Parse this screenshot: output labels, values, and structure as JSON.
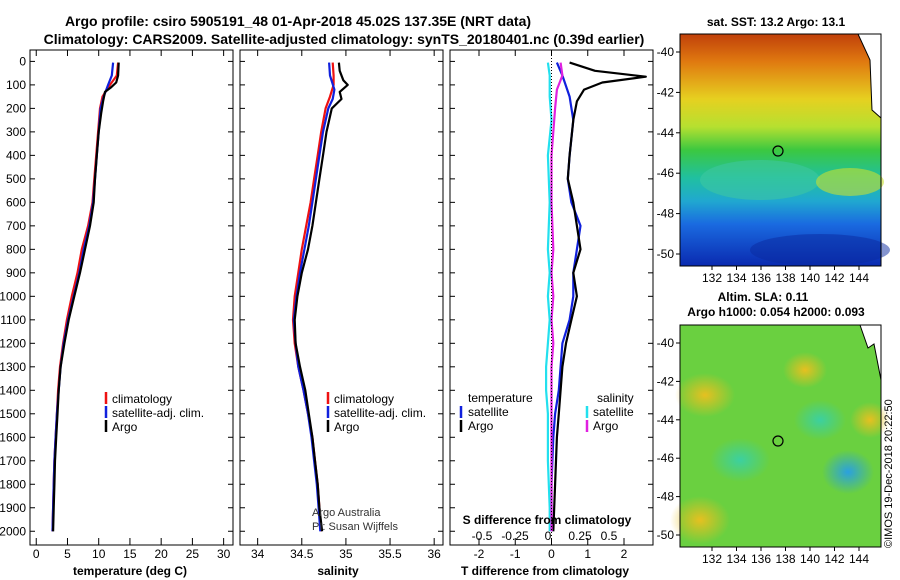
{
  "title_line1": "Argo profile: csiro 5905191_48 01-Apr-2018 45.02S 137.35E (NRT data)",
  "title_line2": "Climatology: CARS2009. Satellite-adjusted climatology: synTS_20180401.nc (0.39d earlier)",
  "colors": {
    "climatology": "#ee1111",
    "satellite": "#1020dd",
    "argo": "#000000",
    "sal_satellite": "#22e0ee",
    "sal_argo": "#e020e0"
  },
  "depth_ticks": [
    "0",
    "100",
    "200",
    "300",
    "400",
    "500",
    "600",
    "700",
    "800",
    "900",
    "1000",
    "1100",
    "1200",
    "1300",
    "1400",
    "1500",
    "1600",
    "1700",
    "1800",
    "1900",
    "2000"
  ],
  "temp_panel": {
    "xlabel": "temperature (deg C)",
    "xticks": [
      "0",
      "5",
      "10",
      "15",
      "20",
      "25",
      "30"
    ],
    "legend": [
      "climatology",
      "satellite-adj. clim.",
      "Argo"
    ]
  },
  "sal_panel": {
    "xlabel": "salinity",
    "xticks": [
      "34",
      "34.5",
      "35",
      "35.5",
      "36"
    ],
    "legend": [
      "climatology",
      "satellite-adj. clim.",
      "Argo"
    ],
    "credit1": "Argo Australia",
    "credit2": "PI: Susan Wijffels"
  },
  "diff_panel": {
    "xlabel": "T difference from climatology",
    "xticks": [
      "-2",
      "-1",
      "0",
      "1",
      "2"
    ],
    "s_label": "S difference from climatology",
    "s_ticks": [
      "-0.5",
      "-0.25",
      "0",
      "0.25",
      "0.5"
    ],
    "legend_t_header": "temperature",
    "legend_s_header": "salinity",
    "legend_t": [
      "satellite",
      "Argo"
    ],
    "legend_s": [
      "satellite",
      "Argo"
    ]
  },
  "map_sst": {
    "title": "sat. SST: 13.2 Argo: 13.1",
    "lat_ticks": [
      "-40",
      "-42",
      "-44",
      "-46",
      "-48",
      "-50"
    ],
    "lon_ticks": [
      "132",
      "134",
      "136",
      "138",
      "140",
      "142",
      "144"
    ]
  },
  "map_sla": {
    "title1": "Altim. SLA: 0.11",
    "title2": "Argo h1000: 0.054 h2000: 0.093",
    "lat_ticks": [
      "-40",
      "-42",
      "-44",
      "-46",
      "-48",
      "-50"
    ],
    "lon_ticks": [
      "132",
      "134",
      "136",
      "138",
      "140",
      "142",
      "144"
    ]
  },
  "stamp": "©IMOS 19-Dec-2018 20:22:50",
  "chart_data": [
    {
      "type": "line",
      "xlabel": "temperature (deg C)",
      "xlim": [
        -1,
        31.5
      ],
      "ylim": [
        2050,
        -40
      ],
      "series": [
        {
          "name": "climatology",
          "points": [
            [
              13.1,
              5
            ],
            [
              12.9,
              60
            ],
            [
              11.8,
              100
            ],
            [
              10.6,
              150
            ],
            [
              10.2,
              200
            ],
            [
              9.9,
              300
            ],
            [
              9.6,
              400
            ],
            [
              9.3,
              500
            ],
            [
              9.0,
              600
            ],
            [
              8.3,
              700
            ],
            [
              7.3,
              800
            ],
            [
              6.6,
              900
            ],
            [
              5.7,
              1000
            ],
            [
              4.9,
              1100
            ],
            [
              4.3,
              1200
            ],
            [
              3.8,
              1300
            ],
            [
              3.5,
              1400
            ],
            [
              3.3,
              1500
            ],
            [
              3.1,
              1600
            ],
            [
              2.9,
              1700
            ],
            [
              2.8,
              1800
            ],
            [
              2.7,
              1900
            ],
            [
              2.6,
              2000
            ]
          ]
        },
        {
          "name": "satellite-adj. clim.",
          "points": [
            [
              12.3,
              5
            ],
            [
              12.1,
              60
            ],
            [
              11.5,
              100
            ],
            [
              10.8,
              150
            ],
            [
              10.3,
              200
            ],
            [
              10.0,
              300
            ],
            [
              9.7,
              400
            ],
            [
              9.4,
              500
            ],
            [
              9.1,
              600
            ],
            [
              8.5,
              700
            ],
            [
              7.6,
              800
            ],
            [
              6.9,
              900
            ],
            [
              6.0,
              1000
            ],
            [
              5.1,
              1100
            ],
            [
              4.4,
              1200
            ],
            [
              3.9,
              1300
            ],
            [
              3.6,
              1400
            ],
            [
              3.3,
              1500
            ],
            [
              3.1,
              1600
            ],
            [
              2.9,
              1700
            ],
            [
              2.8,
              1800
            ],
            [
              2.7,
              1900
            ],
            [
              2.6,
              2000
            ]
          ]
        },
        {
          "name": "Argo",
          "points": [
            [
              13.2,
              5
            ],
            [
              13.1,
              60
            ],
            [
              12.8,
              90
            ],
            [
              12.0,
              110
            ],
            [
              11.0,
              130
            ],
            [
              10.7,
              170
            ],
            [
              10.4,
              220
            ],
            [
              10.0,
              300
            ],
            [
              9.7,
              400
            ],
            [
              9.4,
              500
            ],
            [
              9.2,
              600
            ],
            [
              8.6,
              700
            ],
            [
              7.8,
              800
            ],
            [
              7.0,
              900
            ],
            [
              6.1,
              1000
            ],
            [
              5.2,
              1100
            ],
            [
              4.5,
              1200
            ],
            [
              3.9,
              1300
            ],
            [
              3.6,
              1400
            ],
            [
              3.4,
              1500
            ],
            [
              3.2,
              1600
            ],
            [
              3.0,
              1700
            ],
            [
              2.9,
              1800
            ],
            [
              2.8,
              1900
            ],
            [
              2.7,
              2000
            ]
          ]
        }
      ]
    },
    {
      "type": "line",
      "xlabel": "salinity",
      "xlim": [
        33.8,
        36.1
      ],
      "ylim": [
        2050,
        -40
      ],
      "series": [
        {
          "name": "climatology",
          "points": [
            [
              34.85,
              5
            ],
            [
              34.86,
              60
            ],
            [
              34.86,
              100
            ],
            [
              34.82,
              150
            ],
            [
              34.77,
              200
            ],
            [
              34.72,
              300
            ],
            [
              34.68,
              400
            ],
            [
              34.64,
              500
            ],
            [
              34.6,
              600
            ],
            [
              34.55,
              700
            ],
            [
              34.5,
              800
            ],
            [
              34.46,
              900
            ],
            [
              34.42,
              1000
            ],
            [
              34.4,
              1100
            ],
            [
              34.42,
              1200
            ],
            [
              34.46,
              1300
            ],
            [
              34.52,
              1400
            ],
            [
              34.57,
              1500
            ],
            [
              34.62,
              1600
            ],
            [
              34.65,
              1700
            ],
            [
              34.68,
              1800
            ],
            [
              34.7,
              1900
            ],
            [
              34.72,
              2000
            ]
          ]
        },
        {
          "name": "satellite-adj. clim.",
          "points": [
            [
              34.81,
              5
            ],
            [
              34.82,
              60
            ],
            [
              34.87,
              120
            ],
            [
              34.85,
              160
            ],
            [
              34.8,
              200
            ],
            [
              34.74,
              300
            ],
            [
              34.7,
              400
            ],
            [
              34.66,
              500
            ],
            [
              34.62,
              600
            ],
            [
              34.58,
              700
            ],
            [
              34.53,
              800
            ],
            [
              34.48,
              900
            ],
            [
              34.44,
              1000
            ],
            [
              34.41,
              1100
            ],
            [
              34.43,
              1200
            ],
            [
              34.46,
              1300
            ],
            [
              34.52,
              1400
            ],
            [
              34.57,
              1500
            ],
            [
              34.61,
              1600
            ],
            [
              34.64,
              1700
            ],
            [
              34.67,
              1800
            ],
            [
              34.69,
              1900
            ],
            [
              34.71,
              2000
            ]
          ]
        },
        {
          "name": "Argo",
          "points": [
            [
              34.92,
              5
            ],
            [
              34.93,
              40
            ],
            [
              34.97,
              80
            ],
            [
              35.02,
              100
            ],
            [
              34.93,
              130
            ],
            [
              34.95,
              160
            ],
            [
              34.84,
              200
            ],
            [
              34.78,
              300
            ],
            [
              34.74,
              400
            ],
            [
              34.7,
              500
            ],
            [
              34.66,
              600
            ],
            [
              34.62,
              700
            ],
            [
              34.57,
              800
            ],
            [
              34.5,
              900
            ],
            [
              34.45,
              1000
            ],
            [
              34.42,
              1100
            ],
            [
              34.43,
              1200
            ],
            [
              34.48,
              1300
            ],
            [
              34.54,
              1400
            ],
            [
              34.58,
              1500
            ],
            [
              34.62,
              1600
            ],
            [
              34.65,
              1700
            ],
            [
              34.68,
              1800
            ],
            [
              34.7,
              1900
            ],
            [
              34.73,
              2000
            ]
          ]
        }
      ]
    },
    {
      "type": "line",
      "xlabel": "T difference from climatology",
      "xlim": [
        -2.8,
        2.8
      ],
      "ylim": [
        2050,
        -40
      ],
      "series": [
        {
          "name": "temperature satellite",
          "points": [
            [
              0.15,
              5
            ],
            [
              0.3,
              60
            ],
            [
              0.5,
              150
            ],
            [
              0.6,
              250
            ],
            [
              0.5,
              400
            ],
            [
              0.45,
              500
            ],
            [
              0.55,
              600
            ],
            [
              0.8,
              700
            ],
            [
              0.7,
              800
            ],
            [
              0.6,
              900
            ],
            [
              0.6,
              1000
            ],
            [
              0.5,
              1100
            ],
            [
              0.3,
              1200
            ],
            [
              0.25,
              1300
            ],
            [
              0.2,
              1400
            ],
            [
              0.1,
              1500
            ],
            [
              0.05,
              1600
            ],
            [
              0.0,
              1800
            ],
            [
              0.0,
              2000
            ]
          ]
        },
        {
          "name": "temperature Argo",
          "points": [
            [
              0.5,
              5
            ],
            [
              1.2,
              40
            ],
            [
              2.6,
              65
            ],
            [
              1.4,
              90
            ],
            [
              0.9,
              120
            ],
            [
              0.7,
              170
            ],
            [
              0.6,
              250
            ],
            [
              0.5,
              400
            ],
            [
              0.45,
              500
            ],
            [
              0.6,
              600
            ],
            [
              0.7,
              700
            ],
            [
              0.8,
              800
            ],
            [
              0.6,
              900
            ],
            [
              0.7,
              1000
            ],
            [
              0.55,
              1100
            ],
            [
              0.4,
              1200
            ],
            [
              0.3,
              1300
            ],
            [
              0.25,
              1400
            ],
            [
              0.2,
              1500
            ],
            [
              0.15,
              1600
            ],
            [
              0.1,
              1800
            ],
            [
              0.05,
              2000
            ]
          ]
        },
        {
          "name": "salinity satellite",
          "points": [
            [
              -0.1,
              5
            ],
            [
              -0.05,
              60
            ],
            [
              -0.05,
              150
            ],
            [
              0.0,
              250
            ],
            [
              -0.1,
              400
            ],
            [
              -0.05,
              600
            ],
            [
              -0.1,
              800
            ],
            [
              -0.05,
              900
            ],
            [
              -0.1,
              1000
            ],
            [
              -0.05,
              1100
            ],
            [
              -0.1,
              1200
            ],
            [
              -0.15,
              1300
            ],
            [
              -0.15,
              1400
            ],
            [
              -0.1,
              1500
            ],
            [
              -0.1,
              1700
            ],
            [
              -0.05,
              1900
            ],
            [
              -0.05,
              2000
            ]
          ]
        },
        {
          "name": "salinity Argo",
          "points": [
            [
              0.25,
              5
            ],
            [
              0.3,
              60
            ],
            [
              0.15,
              120
            ],
            [
              0.1,
              200
            ],
            [
              0.05,
              300
            ],
            [
              0.0,
              400
            ],
            [
              0.0,
              600
            ],
            [
              0.05,
              800
            ],
            [
              0.0,
              900
            ],
            [
              0.05,
              1000
            ],
            [
              0.0,
              1100
            ],
            [
              0.05,
              1200
            ],
            [
              0.0,
              1300
            ],
            [
              0.0,
              1500
            ],
            [
              0.0,
              2000
            ]
          ]
        }
      ]
    }
  ]
}
